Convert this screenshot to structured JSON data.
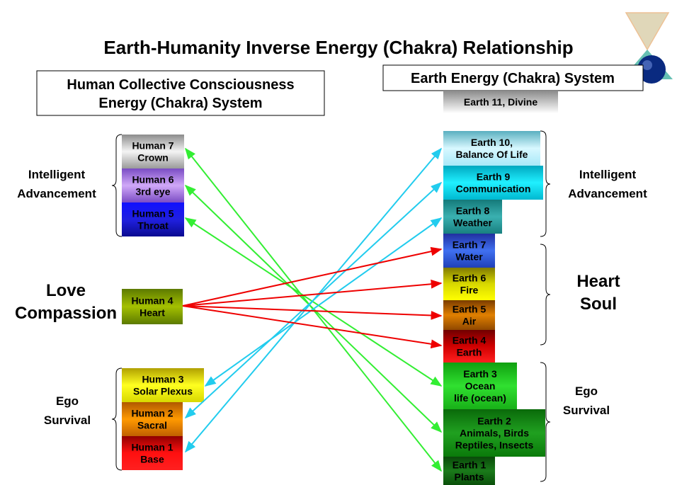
{
  "title": "Earth-Humanity Inverse Energy (Chakra) Relationship",
  "left_header": {
    "lines": [
      "Human Collective Consciousness",
      "Energy (Chakra) System"
    ]
  },
  "right_header": {
    "lines": [
      "Earth Energy (Chakra) System"
    ]
  },
  "humans": [
    {
      "lines": [
        "Human 7",
        "Crown"
      ]
    },
    {
      "lines": [
        "Human 6",
        "3rd eye"
      ]
    },
    {
      "lines": [
        "Human 5",
        "Throat"
      ]
    },
    {
      "lines": [
        "Human 4",
        "Heart"
      ]
    },
    {
      "lines": [
        "Human 3",
        "Solar Plexus"
      ]
    },
    {
      "lines": [
        "Human 2",
        "Sacral"
      ]
    },
    {
      "lines": [
        "Human 1",
        "Base"
      ]
    }
  ],
  "earths": [
    {
      "lines": [
        "Earth 11, Divine"
      ]
    },
    {
      "lines": [
        "Earth 10,",
        "Balance Of Life"
      ]
    },
    {
      "lines": [
        "Earth 9",
        "Communication"
      ]
    },
    {
      "lines": [
        "Earth 8",
        "Weather"
      ]
    },
    {
      "lines": [
        "Earth 7",
        "Water"
      ]
    },
    {
      "lines": [
        "Earth 6",
        "Fire"
      ]
    },
    {
      "lines": [
        "Earth 5",
        "Air"
      ]
    },
    {
      "lines": [
        "Earth 4",
        "Earth"
      ]
    },
    {
      "lines": [
        "Earth 3",
        "Ocean",
        "life (ocean)"
      ]
    },
    {
      "lines": [
        "Earth 2",
        "Animals, Birds",
        "Reptiles, Insects"
      ]
    },
    {
      "lines": [
        "Earth 1",
        "Plants"
      ]
    }
  ],
  "left_groups": [
    {
      "lines": [
        "Intelligent",
        "Advancement"
      ]
    },
    {
      "lines": [
        "Love",
        "Compassion"
      ]
    },
    {
      "lines": [
        "Ego",
        "Survival"
      ]
    }
  ],
  "right_groups": [
    {
      "lines": [
        "Intelligent",
        "Advancement"
      ]
    },
    {
      "lines": [
        "Heart",
        "Soul"
      ]
    },
    {
      "lines": [
        "Ego",
        "Survival"
      ]
    }
  ]
}
